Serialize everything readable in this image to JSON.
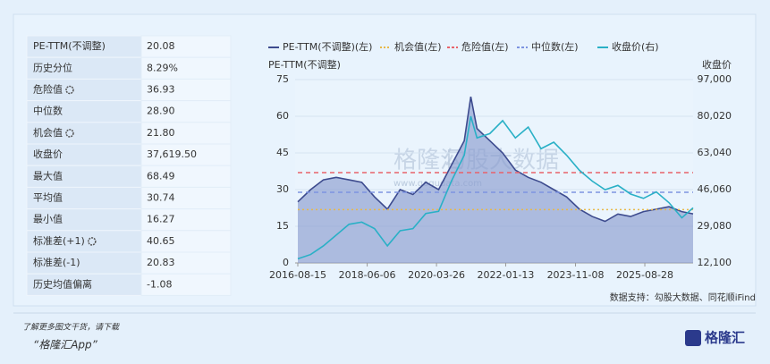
{
  "table": {
    "rows": [
      [
        "PE-TTM(不调整)",
        "20.08"
      ],
      [
        "历史分位",
        "8.29%"
      ],
      [
        "危险值",
        "36.93"
      ],
      [
        "中位数",
        "28.90"
      ],
      [
        "机会值",
        "21.80"
      ],
      [
        "收盘价",
        "37,619.50"
      ],
      [
        "最大值",
        "68.49"
      ],
      [
        "平均值",
        "30.74"
      ],
      [
        "最小值",
        "16.27"
      ],
      [
        "标准差(+1)",
        "40.65"
      ],
      [
        "标准差(-1)",
        "20.83"
      ],
      [
        "历史均值偏离",
        "-1.08"
      ]
    ]
  },
  "chart_data": {
    "type": "line",
    "y_label": "PE-TTM(不调整)",
    "y2_label": "收盘价",
    "x": [
      "2016-08-15",
      "2016-12-15",
      "2017-04-15",
      "2017-08-15",
      "2017-12-15",
      "2018-04-15",
      "2018-08-15",
      "2018-12-15",
      "2019-04-15",
      "2019-08-15",
      "2019-12-15",
      "2020-04-15",
      "2020-08-15",
      "2020-12-15",
      "2021-02-15",
      "2021-04-15",
      "2021-08-15",
      "2021-12-15",
      "2022-04-15",
      "2022-08-15",
      "2022-12-15",
      "2023-04-15",
      "2023-08-15",
      "2023-12-15",
      "2024-04-15",
      "2024-08-15",
      "2024-12-15",
      "2025-04-15",
      "2025-08-15",
      "2025-12-15",
      "2026-04-15",
      "2026-08-15",
      "2026-11-30"
    ],
    "xlim": [
      "2016-08-15",
      "2026-11-30"
    ],
    "xticks": [
      "2016-08-15",
      "2018-06-06",
      "2020-03-26",
      "2022-01-13",
      "2023-11-08",
      "2025-08-28"
    ],
    "ylim": [
      0,
      75
    ],
    "yticks": [
      0,
      15,
      30,
      45,
      60,
      75
    ],
    "y2lim": [
      12100,
      97000
    ],
    "y2ticks": [
      {
        "value": 12100,
        "label": "12,100"
      },
      {
        "value": 29080,
        "label": "29,080"
      },
      {
        "value": 46060,
        "label": "46,060"
      },
      {
        "value": 63040,
        "label": "63,040"
      },
      {
        "value": 80020,
        "label": "80,020"
      },
      {
        "value": 97000,
        "label": "97,000"
      }
    ],
    "series": [
      {
        "name": "PE-TTM(不调整)(左)",
        "color": "#3d4b8e",
        "fill": true,
        "values": [
          25,
          30,
          34,
          35,
          34,
          33,
          27,
          22,
          30,
          28,
          33,
          30,
          40,
          50,
          68,
          55,
          50,
          45,
          38,
          35,
          33,
          30,
          27,
          22,
          19,
          17,
          20,
          19,
          21,
          22,
          23,
          21,
          20.08
        ]
      },
      {
        "name": "机会值(左)",
        "color": "#e8b84a",
        "value": 21.8,
        "style": "dotted"
      },
      {
        "name": "危险值(左)",
        "color": "#e8636b",
        "value": 36.93,
        "style": "dashed"
      },
      {
        "name": "中位数(左)",
        "color": "#7d93e0",
        "value": 28.9,
        "style": "dashed"
      },
      {
        "name": "收盘价(右)",
        "color": "#2ab0c6",
        "axis": "y2",
        "values": [
          14000,
          16000,
          20000,
          25000,
          30000,
          31000,
          28000,
          20000,
          27000,
          28000,
          35000,
          36000,
          50000,
          62000,
          80000,
          70000,
          72000,
          78000,
          70000,
          75000,
          65000,
          68000,
          62000,
          55000,
          50000,
          46000,
          48000,
          44000,
          42000,
          45000,
          40000,
          33000,
          37619.5
        ]
      }
    ],
    "source": "数据支持：勾股大数据、同花顺iFind",
    "watermark": [
      "格隆汇",
      "勾股大数据",
      "www.gogudata.com"
    ]
  },
  "footer": {
    "line1": "了解更多图文干货，请下载",
    "line2": "“格隆汇App”",
    "logo": "格隆汇"
  }
}
